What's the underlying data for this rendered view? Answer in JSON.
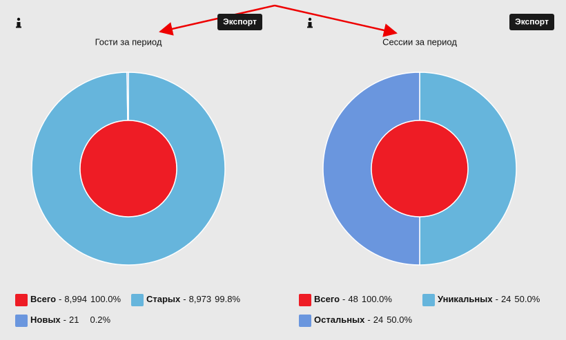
{
  "chart_data": [
    {
      "type": "donut",
      "title": "Гости за период",
      "button": "Экспорт",
      "legend_separator": "-",
      "categories": [
        "Всего",
        "Старых",
        "Новых"
      ],
      "values": [
        8994,
        8973,
        21
      ],
      "value_labels": [
        "8,994",
        "8,973",
        "21"
      ],
      "percents": [
        100.0,
        99.8,
        0.2
      ],
      "percent_labels": [
        "100.0%",
        "99.8%",
        "0.2%"
      ],
      "colors": [
        "#ee1c25",
        "#66b5dc",
        "#6a96de"
      ]
    },
    {
      "type": "donut",
      "title": "Сессии за период",
      "button": "Экспорт",
      "legend_separator": "-",
      "categories": [
        "Всего",
        "Уникальных",
        "Остальных"
      ],
      "values": [
        48,
        24,
        24
      ],
      "value_labels": [
        "48",
        "24",
        "24"
      ],
      "percents": [
        100.0,
        50.0,
        50.0
      ],
      "percent_labels": [
        "100.0%",
        "50.0%",
        "50.0%"
      ],
      "colors": [
        "#ee1c25",
        "#66b5dc",
        "#6a96de"
      ]
    }
  ]
}
